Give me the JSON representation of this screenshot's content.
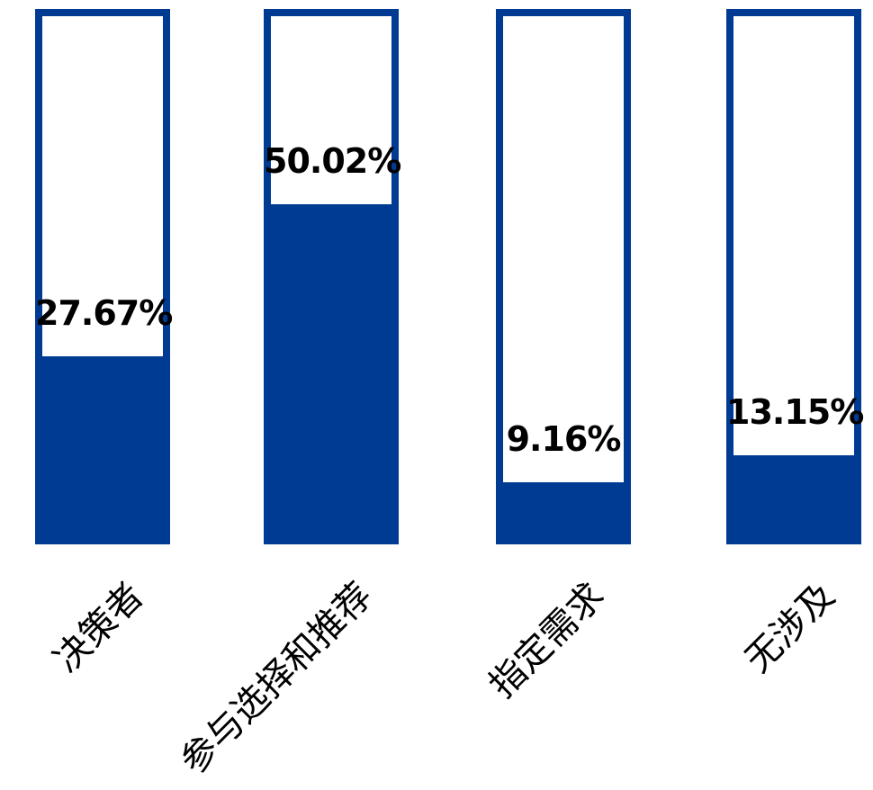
{
  "chart_data": {
    "type": "bar",
    "subtype": "outlined-bars-with-partial-fill",
    "orientation": "vertical",
    "title": "",
    "xlabel": "",
    "ylabel": "",
    "categories": [
      "决策者",
      "参与选择和推荐",
      "指定需求",
      "无涉及"
    ],
    "values": [
      27.67,
      50.02,
      9.16,
      13.15
    ],
    "value_labels": [
      "27.67%",
      "50.02%",
      "9.16%",
      "13.15%"
    ],
    "ylim": [
      0,
      78.8
    ],
    "grid": false,
    "legend": false,
    "x_tick_label_rotation_deg": 45,
    "colors": {
      "bar_fill": "#003B93",
      "bar_outline": "#003B93",
      "bar_empty_area": "#ffffff",
      "value_label_text": "#000000",
      "category_label_text": "#000000",
      "background": "#ffffff"
    }
  }
}
